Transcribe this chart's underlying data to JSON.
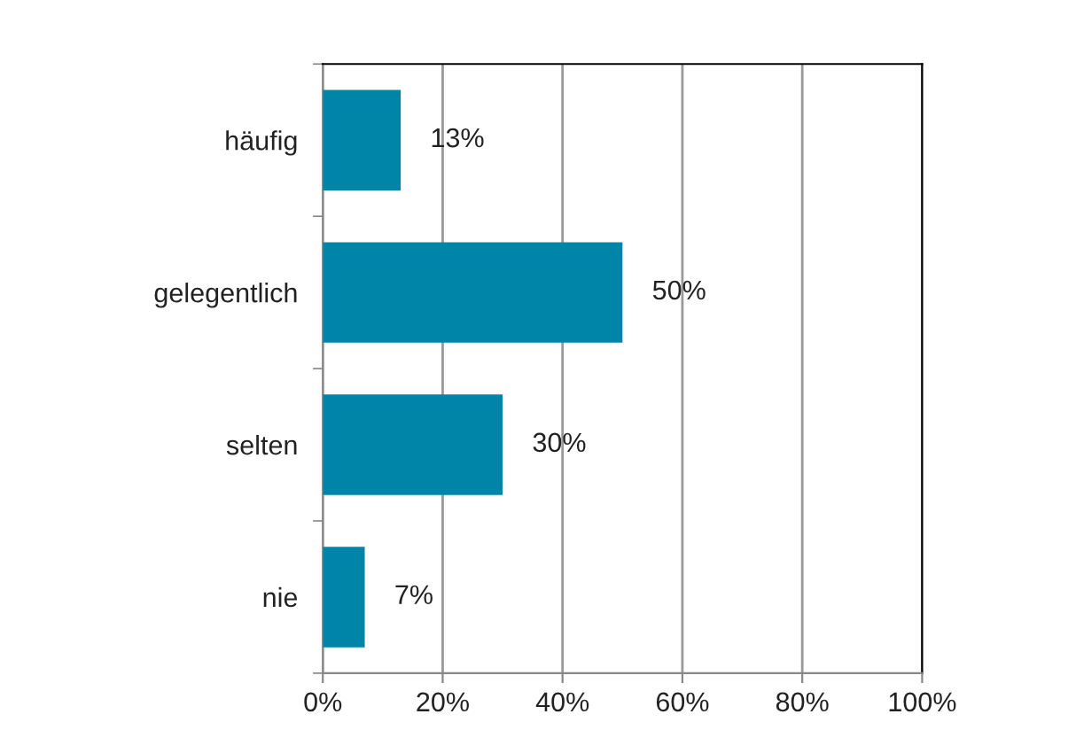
{
  "chart_data": {
    "type": "bar",
    "orientation": "horizontal",
    "categories": [
      "häufig",
      "gelegentlich",
      "selten",
      "nie"
    ],
    "values": [
      13,
      50,
      30,
      7
    ],
    "color": "#0085a8",
    "value_labels": [
      "13%",
      "50%",
      "30%",
      "7%"
    ],
    "xlim": [
      0,
      100
    ],
    "xticks": [
      {
        "value": 0,
        "label": "0%"
      },
      {
        "value": 20,
        "label": "20%"
      },
      {
        "value": 40,
        "label": "40%"
      },
      {
        "value": 60,
        "label": "60%"
      },
      {
        "value": 80,
        "label": "80%"
      },
      {
        "value": 100,
        "label": "100%"
      }
    ],
    "grid": "x",
    "legend": false
  }
}
